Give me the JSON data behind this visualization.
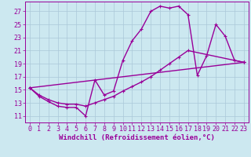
{
  "xlabel": "Windchill (Refroidissement éolien,°C)",
  "bg_color": "#cce8f0",
  "line_color": "#990099",
  "grid_color": "#aac8d8",
  "xlim": [
    -0.5,
    23.5
  ],
  "ylim": [
    10,
    28.5
  ],
  "yticks": [
    11,
    13,
    15,
    17,
    19,
    21,
    23,
    25,
    27
  ],
  "xticks": [
    0,
    1,
    2,
    3,
    4,
    5,
    6,
    7,
    8,
    9,
    10,
    11,
    12,
    13,
    14,
    15,
    16,
    17,
    18,
    19,
    20,
    21,
    22,
    23
  ],
  "line1_x": [
    0,
    1,
    2,
    3,
    4,
    5,
    6,
    7,
    8,
    9,
    10,
    11,
    12,
    13,
    14,
    15,
    16,
    17,
    18,
    19,
    20,
    21,
    22,
    23
  ],
  "line1_y": [
    15.3,
    14.0,
    13.2,
    12.5,
    12.3,
    12.3,
    11.0,
    16.5,
    14.2,
    14.8,
    19.5,
    22.5,
    24.3,
    27.0,
    27.8,
    27.5,
    27.8,
    26.5,
    17.2,
    20.2,
    25.0,
    23.2,
    19.5,
    19.2
  ],
  "line2_x": [
    0,
    1,
    2,
    3,
    4,
    5,
    6,
    7,
    8,
    9,
    10,
    11,
    12,
    13,
    14,
    15,
    16,
    17,
    23
  ],
  "line2_y": [
    15.3,
    14.2,
    13.5,
    13.0,
    12.8,
    12.8,
    12.5,
    13.0,
    13.5,
    14.0,
    14.8,
    15.5,
    16.2,
    17.0,
    18.0,
    19.0,
    20.0,
    21.0,
    19.2
  ],
  "line3_x": [
    0,
    23
  ],
  "line3_y": [
    15.3,
    19.2
  ],
  "markersize": 3,
  "linewidth": 1.0,
  "xlabel_fontsize": 6.5,
  "tick_fontsize": 6
}
